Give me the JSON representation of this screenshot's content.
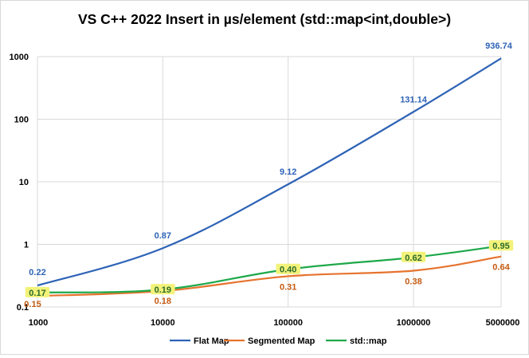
{
  "chart_data": {
    "type": "line",
    "title": "VS C++ 2022 Insert in µs/element  (std::map<int,double>)",
    "xlabel": "",
    "ylabel": "",
    "x_scale": "log",
    "y_scale": "log",
    "x": [
      1000,
      10000,
      100000,
      1000000,
      5000000
    ],
    "x_tick_labels": [
      "1000",
      "10000",
      "100000",
      "1000000",
      "5000000"
    ],
    "y_ticks": [
      0.1,
      1,
      10,
      100,
      1000
    ],
    "y_tick_labels": [
      "0.1",
      "1",
      "10",
      "100",
      "1000"
    ],
    "ylim": [
      0.1,
      1000
    ],
    "grid": "vertical and horizontal major gridlines",
    "legend_position": "bottom",
    "series": [
      {
        "name": "Flat Map",
        "color": "#2e63b6",
        "values": [
          0.22,
          0.87,
          9.12,
          131.14,
          936.74
        ],
        "data_labels": [
          "0.22",
          "0.87",
          "9.12",
          "131.14",
          "936.74"
        ]
      },
      {
        "name": "Segmented Map",
        "color": "#e6732e",
        "values": [
          0.15,
          0.18,
          0.31,
          0.38,
          0.64
        ],
        "data_labels": [
          "0.15",
          "0.18",
          "0.31",
          "0.38",
          "0.64"
        ]
      },
      {
        "name": "std::map",
        "color": "#1ea84a",
        "label_highlight": "#f2f27a",
        "values": [
          0.17,
          0.19,
          0.4,
          0.62,
          0.95
        ],
        "data_labels": [
          "0.17",
          "0.19",
          "0.40",
          "0.62",
          "0.95"
        ]
      }
    ]
  }
}
